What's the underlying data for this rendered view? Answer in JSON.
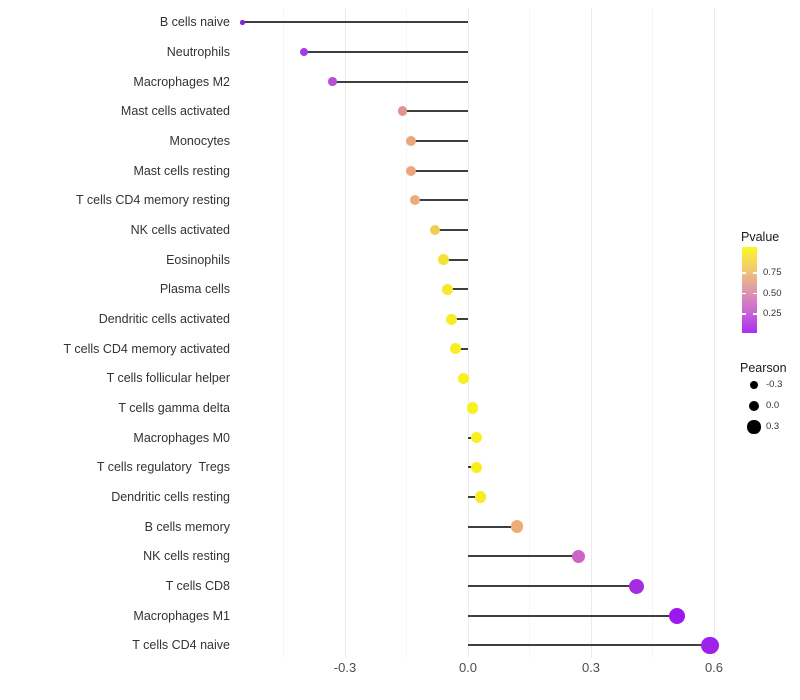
{
  "chart_data": {
    "type": "scatter",
    "style": "lollipop",
    "title": "",
    "xlabel": "",
    "ylabel": "",
    "categories": [
      "B cells naive",
      "Neutrophils",
      "Macrophages M2",
      "Mast cells activated",
      "Monocytes",
      "Mast cells resting",
      "T cells CD4 memory resting",
      "NK cells activated",
      "Eosinophils",
      "Plasma cells",
      "Dendritic cells activated",
      "T cells CD4 memory activated",
      "T cells follicular helper",
      "T cells gamma delta",
      "Macrophages M0",
      "T cells regulatory  Tregs",
      "Dendritic cells resting",
      "B cells memory",
      "NK cells resting",
      "T cells CD8",
      "Macrophages M1",
      "T cells CD4 naive"
    ],
    "series": [
      {
        "name": "Pearson",
        "values": [
          -0.55,
          -0.4,
          -0.33,
          -0.16,
          -0.14,
          -0.14,
          -0.13,
          -0.08,
          -0.06,
          -0.05,
          -0.04,
          -0.03,
          -0.01,
          0.01,
          0.02,
          0.02,
          0.03,
          0.12,
          0.27,
          0.41,
          0.51,
          0.59
        ]
      }
    ],
    "point_colors": [
      "#8326da",
      "#a63ae0",
      "#b84fd6",
      "#e29390",
      "#e9a77c",
      "#e9a77c",
      "#ebac7e",
      "#efcd52",
      "#f3e235",
      "#f5e92c",
      "#f6ed26",
      "#f7ef22",
      "#f8f120",
      "#f8f120",
      "#f8f01f",
      "#f7f01e",
      "#f6ec25",
      "#edad72",
      "#cd62c7",
      "#a62be2",
      "#9d18ee",
      "#a021e9"
    ],
    "point_radii": [
      2.3,
      4.0,
      4.3,
      4.9,
      5.0,
      5.0,
      5.1,
      5.3,
      5.4,
      5.4,
      5.5,
      5.5,
      5.6,
      5.6,
      5.7,
      5.7,
      5.8,
      6.3,
      6.8,
      7.5,
      8.1,
      8.7
    ],
    "baseline": 0,
    "x_tick_labels": [
      "-0.3",
      "0.0",
      "0.3",
      "0.6"
    ],
    "x_tick_values": [
      -0.3,
      0.0,
      0.3,
      0.6
    ],
    "x_minor_values": [
      -0.45,
      -0.15,
      0.15,
      0.45
    ],
    "xlim": [
      -0.58,
      0.65
    ],
    "grid": "vertical-only",
    "legend_position": "right"
  },
  "legend": {
    "pvalue": {
      "title": "Pvalue",
      "tick_labels": [
        "0.75",
        "0.50",
        "0.25"
      ],
      "gradient_colors": [
        "#f9f724",
        "#f2cb6f",
        "#e098ab",
        "#ca68d2",
        "#a92ef2"
      ]
    },
    "pearson": {
      "title": "Pearson",
      "items": [
        {
          "label": "-0.3",
          "radius": 4.2
        },
        {
          "label": "0.0",
          "radius": 5.3
        },
        {
          "label": "0.3",
          "radius": 6.6
        }
      ],
      "dot_color": "#000000"
    }
  },
  "colors": {
    "background": "#ffffff",
    "stem": "#3f3f3f",
    "grid_major": "#ebebeb",
    "grid_minor": "#f5f5f5",
    "axis_text": "#4d4d4d",
    "category_text": "#333333"
  }
}
